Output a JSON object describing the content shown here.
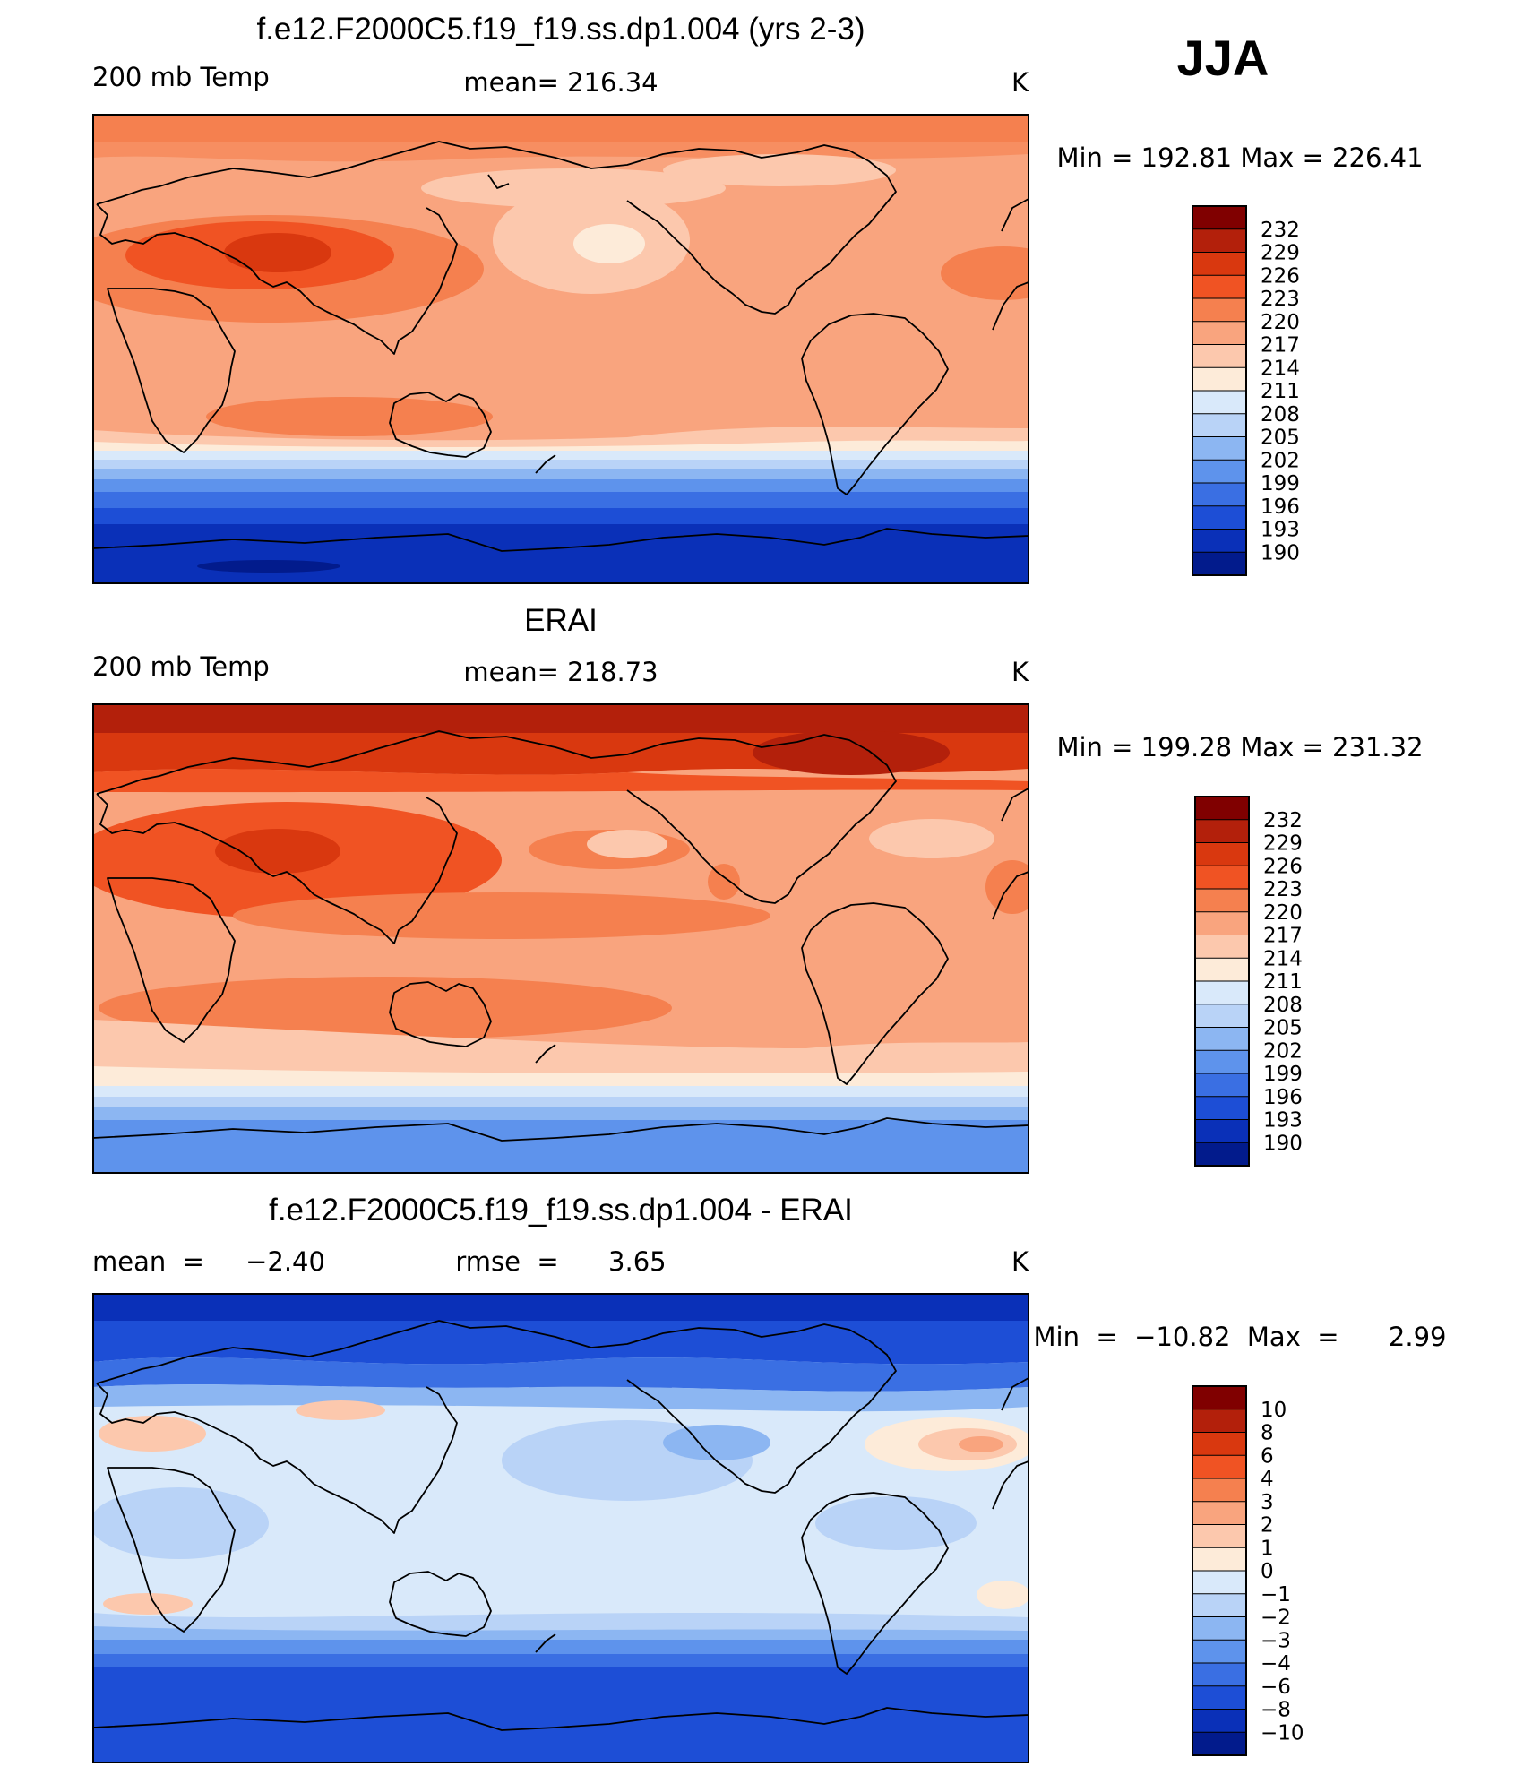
{
  "season": "JJA",
  "panels": [
    {
      "title": "f.e12.F2000C5.f19_f19.ss.dp1.004 (yrs 2-3)",
      "left_label": "200 mb Temp",
      "center_label": "mean=  216.34",
      "units": "K",
      "minmax": "Min  =  192.81  Max  =  226.41"
    },
    {
      "title": "ERAI",
      "left_label": "200 mb Temp",
      "center_label": "mean=  218.73",
      "units": "K",
      "minmax": "Min  =  199.28  Max  =  231.32"
    },
    {
      "title": "f.e12.F2000C5.f19_f19.ss.dp1.004 - ERAI",
      "left_label": "mean  =     −2.40",
      "center_label": "rmse  =      3.65",
      "units": "K",
      "minmax": "Min  =  −10.82  Max  =      2.99"
    }
  ],
  "colorbars": [
    {
      "levels": [
        "232",
        "229",
        "226",
        "223",
        "220",
        "217",
        "214",
        "211",
        "208",
        "205",
        "202",
        "199",
        "196",
        "193",
        "190"
      ]
    },
    {
      "levels": [
        "232",
        "229",
        "226",
        "223",
        "220",
        "217",
        "214",
        "211",
        "208",
        "205",
        "202",
        "199",
        "196",
        "193",
        "190"
      ]
    },
    {
      "levels": [
        "10",
        "8",
        "6",
        "4",
        "3",
        "2",
        "1",
        "0",
        "−1",
        "−2",
        "−3",
        "−4",
        "−6",
        "−8",
        "−10"
      ]
    }
  ],
  "palette": [
    "#800000",
    "#b3200b",
    "#d9380f",
    "#f05323",
    "#f5804f",
    "#f9a47e",
    "#fcc8ad",
    "#fdebd9",
    "#d9e9fa",
    "#b9d3f7",
    "#8cb6f2",
    "#5e93ec",
    "#3a6fe3",
    "#1d4ed6",
    "#0a30b8",
    "#021b8c"
  ],
  "chart_data": [
    {
      "type": "heatmap",
      "title": "f.e12.F2000C5.f19_f19.ss.dp1.004 (yrs 2-3)",
      "variable": "200 mb Temp",
      "units": "K",
      "mean": 216.34,
      "min": 192.81,
      "max": 226.41,
      "contour_levels": [
        190,
        193,
        196,
        199,
        202,
        205,
        208,
        211,
        214,
        217,
        220,
        223,
        226,
        229,
        232
      ],
      "latitude_band_values": [
        {
          "lat": 75,
          "value": 220
        },
        {
          "lat": 45,
          "value": 218
        },
        {
          "lat": 30,
          "value": 224
        },
        {
          "lat": 0,
          "value": 218
        },
        {
          "lat": -25,
          "value": 219
        },
        {
          "lat": -45,
          "value": 211
        },
        {
          "lat": -55,
          "value": 203
        },
        {
          "lat": -70,
          "value": 195
        }
      ]
    },
    {
      "type": "heatmap",
      "title": "ERAI",
      "variable": "200 mb Temp",
      "units": "K",
      "mean": 218.73,
      "min": 199.28,
      "max": 231.32,
      "contour_levels": [
        190,
        193,
        196,
        199,
        202,
        205,
        208,
        211,
        214,
        217,
        220,
        223,
        226,
        229,
        232
      ],
      "latitude_band_values": [
        {
          "lat": 85,
          "value": 230
        },
        {
          "lat": 70,
          "value": 226
        },
        {
          "lat": 30,
          "value": 224
        },
        {
          "lat": 0,
          "value": 221
        },
        {
          "lat": -25,
          "value": 221
        },
        {
          "lat": -50,
          "value": 212
        },
        {
          "lat": -60,
          "value": 205
        },
        {
          "lat": -75,
          "value": 200
        }
      ]
    },
    {
      "type": "heatmap",
      "title": "f.e12.F2000C5.f19_f19.ss.dp1.004 - ERAI",
      "units": "K",
      "mean": -2.4,
      "rmse": 3.65,
      "min": -10.82,
      "max": 2.99,
      "contour_levels": [
        -10,
        -8,
        -6,
        -4,
        -3,
        -2,
        -1,
        0,
        1,
        2,
        3,
        4,
        6,
        8,
        10
      ],
      "latitude_band_values": [
        {
          "lat": 85,
          "value": -9
        },
        {
          "lat": 65,
          "value": -6
        },
        {
          "lat": 40,
          "value": -1
        },
        {
          "lat": 0,
          "value": -0.5
        },
        {
          "lat": -30,
          "value": -1
        },
        {
          "lat": -45,
          "value": -5
        },
        {
          "lat": -60,
          "value": -7
        },
        {
          "lat": -75,
          "value": -6
        }
      ]
    }
  ]
}
